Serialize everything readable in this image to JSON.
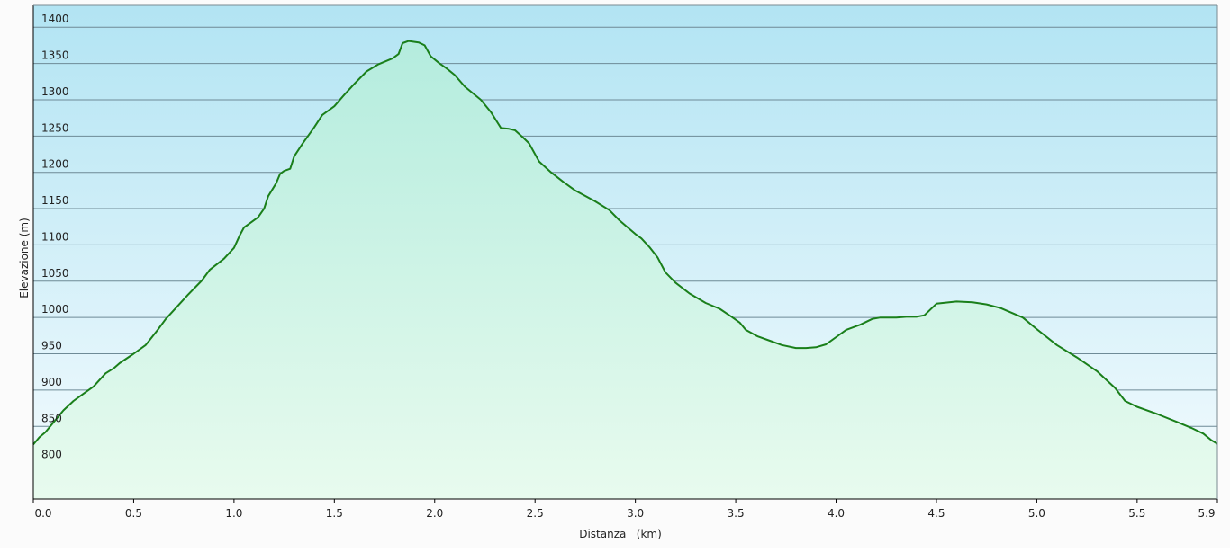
{
  "chart_data": {
    "type": "area",
    "title": "",
    "xlabel": "Distanza   (km)",
    "ylabel": "Elevazione (m)",
    "xlim": [
      0,
      5.9
    ],
    "ylim": [
      750,
      1430
    ],
    "grid": true,
    "x_ticks": [
      0.0,
      0.5,
      1.0,
      1.5,
      2.0,
      2.5,
      3.0,
      3.5,
      4.0,
      4.5,
      5.0,
      5.5,
      5.9
    ],
    "x_tick_labels": [
      "0.0",
      "0.5",
      "1.0",
      "1.5",
      "2.0",
      "2.5",
      "3.0",
      "3.5",
      "4.0",
      "4.5",
      "5.0",
      "5.5",
      "5.9"
    ],
    "y_ticks": [
      800,
      850,
      900,
      950,
      1000,
      1050,
      1100,
      1150,
      1200,
      1250,
      1300,
      1350,
      1400
    ],
    "y_tick_labels": [
      "800",
      "850",
      "900",
      "950",
      "1000",
      "1050",
      "1100",
      "1150",
      "1200",
      "1250",
      "1300",
      "1350",
      "1400"
    ],
    "colors": {
      "line": "#1a7f1a",
      "fill_top": "#b4ecde",
      "fill_bottom": "#e8fbee",
      "bg_top": "#b2e4f3",
      "bg_bottom": "#f4fbfe",
      "grid": "#6e8a96"
    },
    "series": [
      {
        "x": [
          0.0,
          0.03,
          0.06,
          0.09,
          0.12,
          0.15,
          0.2,
          0.25,
          0.3,
          0.36,
          0.4,
          0.43,
          0.5,
          0.56,
          0.62,
          0.66,
          0.72,
          0.77,
          0.84,
          0.88,
          0.95,
          1.0,
          1.03,
          1.05,
          1.08,
          1.12,
          1.15,
          1.17,
          1.21,
          1.23,
          1.25,
          1.28,
          1.3,
          1.34,
          1.4,
          1.44,
          1.47,
          1.5,
          1.55,
          1.6,
          1.66,
          1.72,
          1.79,
          1.82,
          1.84,
          1.87,
          1.92,
          1.95,
          1.98,
          2.02,
          2.06,
          2.1,
          2.15,
          2.23,
          2.28,
          2.33,
          2.37,
          2.4,
          2.44,
          2.47,
          2.52,
          2.58,
          2.64,
          2.7,
          2.76,
          2.8,
          2.87,
          2.92,
          3.0,
          3.03,
          3.07,
          3.11,
          3.15,
          3.2,
          3.27,
          3.35,
          3.42,
          3.48,
          3.52,
          3.55,
          3.61,
          3.67,
          3.73,
          3.8,
          3.85,
          3.9,
          3.95,
          4.0,
          4.05,
          4.12,
          4.18,
          4.22,
          4.3,
          4.35,
          4.4,
          4.44,
          4.5,
          4.6,
          4.68,
          4.75,
          4.82,
          4.93,
          5.0,
          5.1,
          5.2,
          5.3,
          5.39,
          5.44,
          5.5,
          5.6,
          5.7,
          5.77,
          5.83,
          5.87,
          5.9
        ],
        "y": [
          825,
          835,
          842,
          852,
          862,
          872,
          885,
          895,
          905,
          923,
          930,
          937,
          950,
          962,
          983,
          998,
          1016,
          1031,
          1051,
          1066,
          1081,
          1096,
          1114,
          1124,
          1130,
          1138,
          1150,
          1167,
          1185,
          1198,
          1202,
          1205,
          1222,
          1239,
          1262,
          1279,
          1285,
          1291,
          1307,
          1322,
          1339,
          1349,
          1357,
          1363,
          1378,
          1381,
          1379,
          1375,
          1360,
          1351,
          1343,
          1334,
          1318,
          1300,
          1283,
          1261,
          1260,
          1258,
          1248,
          1240,
          1215,
          1200,
          1187,
          1175,
          1166,
          1160,
          1148,
          1134,
          1115,
          1109,
          1097,
          1083,
          1062,
          1048,
          1033,
          1020,
          1012,
          1001,
          993,
          983,
          974,
          968,
          962,
          958,
          958,
          959,
          963,
          973,
          983,
          990,
          998,
          1000,
          1000,
          1001,
          1001,
          1003,
          1019,
          1022,
          1021,
          1018,
          1013,
          1000,
          984,
          962,
          945,
          926,
          903,
          885,
          877,
          867,
          856,
          848,
          840,
          831,
          826
        ]
      }
    ]
  }
}
